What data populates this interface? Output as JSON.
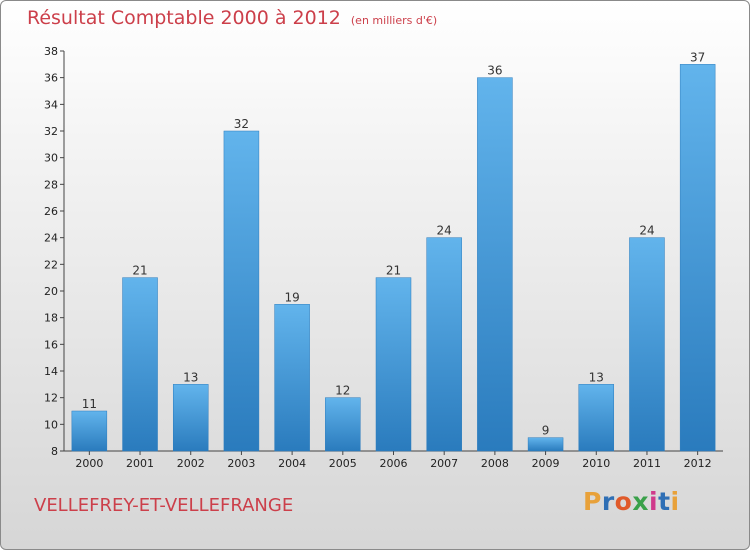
{
  "title": "Résultat Comptable 2000 à 2012",
  "subtitle": "(en milliers d'€)",
  "commune": "VELLEFREY-ET-VELLEFRANGE",
  "logo": {
    "letters": [
      "P",
      "r",
      "o",
      "x",
      "i",
      "t",
      "i"
    ],
    "colors": [
      "#e8a13a",
      "#2f6fb5",
      "#e05a2a",
      "#3aa14a",
      "#d03a8a",
      "#2f6fb5",
      "#e8a13a"
    ]
  },
  "colors": {
    "bar_light": "#62b4ec",
    "bar_dark": "#2a7bbd",
    "title": "#cc3f4a"
  },
  "chart_data": {
    "type": "bar",
    "categories": [
      "2000",
      "2001",
      "2002",
      "2003",
      "2004",
      "2005",
      "2006",
      "2007",
      "2008",
      "2009",
      "2010",
      "2011",
      "2012"
    ],
    "values": [
      11,
      21,
      13,
      32,
      19,
      12,
      21,
      24,
      36,
      9,
      13,
      24,
      37
    ],
    "xlabel": "",
    "ylabel": "",
    "ylim": [
      8,
      38
    ],
    "yticks": [
      8,
      10,
      12,
      14,
      16,
      18,
      20,
      22,
      24,
      26,
      28,
      30,
      32,
      34,
      36,
      38
    ],
    "grid": false,
    "data_labels": true
  }
}
